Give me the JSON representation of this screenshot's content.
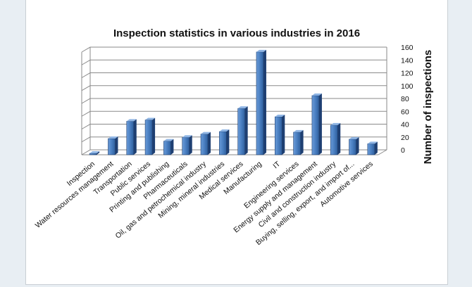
{
  "chart_data": {
    "type": "bar",
    "title": "Inspection statistics in various industries in 2016",
    "xlabel": "",
    "ylabel": "Number of inspections",
    "ylim": [
      0,
      160
    ],
    "yticks": [
      0,
      20,
      40,
      60,
      80,
      100,
      120,
      140,
      160
    ],
    "grid": true,
    "bar_color": "#4a7fc1",
    "categories": [
      "Inspection",
      "Water resources management",
      "Transportation",
      "Public services",
      "Printing and publishing",
      "Pharmaceuticals",
      "Oil, gas and petrochemical industry",
      "Mining, mineral industries",
      "Medical services",
      "Manufacturing",
      "IT",
      "Engineering services",
      "Energy supply and management",
      "Civil and construction industry",
      "Buying, selling, export, and import of...",
      "Automotive services"
    ],
    "values": [
      0,
      23,
      50,
      52,
      19,
      25,
      30,
      34,
      70,
      158,
      57,
      33,
      90,
      44,
      22,
      15
    ]
  }
}
